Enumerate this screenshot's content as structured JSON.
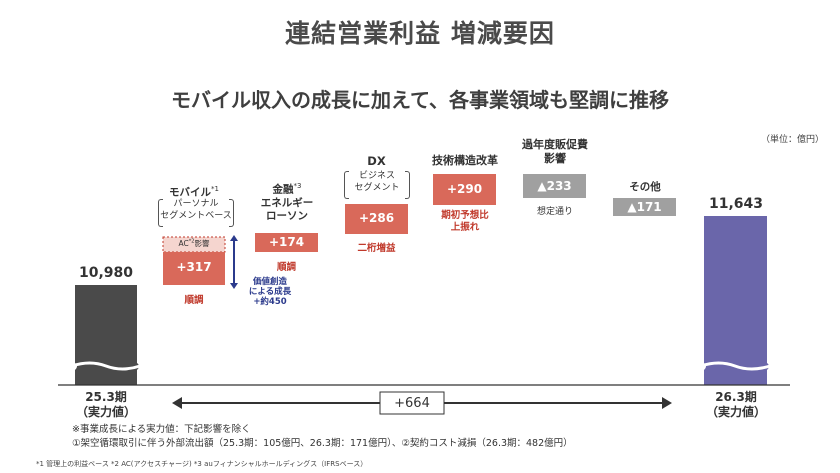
{
  "title": "連結営業利益 増減要因",
  "subtitle": "モバイル収入の成長に加えて、各事業領域も堅調に推移",
  "unit": "（単位：億円）",
  "chart_data": {
    "type": "bar",
    "subtype": "waterfall",
    "categories": [
      "25.3期（実力値）",
      "モバイル",
      "金融",
      "DX",
      "技術構造改革",
      "過年度販促費影響",
      "その他",
      "26.3期（実力値）"
    ],
    "values": [
      10980,
      317,
      174,
      286,
      290,
      -233,
      -171,
      11643
    ],
    "value_labels": [
      "10,980",
      "+317",
      "+174",
      "+286",
      "+290",
      "▲233",
      "▲171",
      "11,643"
    ],
    "start_value": 10980,
    "end_value": 11643,
    "total_change": "+664",
    "colors": {
      "total": "#4a4a4a",
      "end": "#6a66aa",
      "positive": "#d9695a",
      "negative": "#a0a0a0",
      "ac_hatch": "#f0b9b0"
    }
  },
  "bars": {
    "start": {
      "value": "10,980",
      "label_line1": "25.3期",
      "label_line2": "（実力値）"
    },
    "mobile": {
      "name": "モバイル",
      "sup": "*1",
      "sub1": "パーソナル",
      "sub2": "セグメントベース",
      "ac": "AC",
      "ac_sup": "*2",
      "ac_tail": "影響",
      "value": "+317",
      "note": "順調",
      "creation1": "価値創造",
      "creation2": "による成長",
      "creation3": "+約450"
    },
    "finance": {
      "name1": "金融",
      "sup": "*3",
      "name2": "エネルギー",
      "name3": "ローソン",
      "value": "+174",
      "note": "順調"
    },
    "dx": {
      "name": "DX",
      "sub1": "ビジネス",
      "sub2": "セグメント",
      "value": "+286",
      "note": "二桁増益"
    },
    "tech": {
      "name": "技術構造改革",
      "value": "+290",
      "note1": "期初予想比",
      "note2": "上振れ"
    },
    "promo": {
      "name1": "過年度販促費",
      "name2": "影響",
      "value": "▲233",
      "note": "想定通り"
    },
    "other": {
      "name": "その他",
      "value": "▲171"
    },
    "end": {
      "value": "11,643",
      "label_line1": "26.3期",
      "label_line2": "（実力値）"
    }
  },
  "change_label": "+664",
  "notes": {
    "line1": "※事業成長による実力値：下記影響を除く",
    "line2": "①架空循環取引に伴う外部流出額（25.3期：105億円、26.3期：171億円）、②契約コスト減損（26.3期：482億円）"
  },
  "footnote": "*1 管理上の利益ベース *2 AC(アクセスチャージ) *3 auフィナンシャルホールディングス（IFRSベース）"
}
